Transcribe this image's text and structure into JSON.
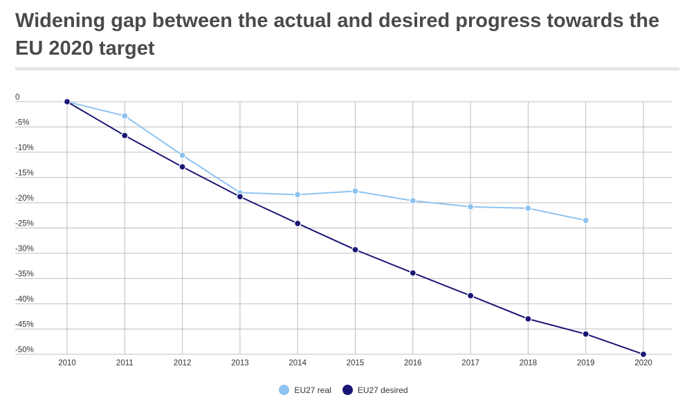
{
  "title": "Widening gap between the actual and desired progress towards the EU 2020 target",
  "colors": {
    "real": "#8ec3f0",
    "desired": "#1a1675",
    "grid": "#bdbdbd",
    "title_rule": "#e6e6e6"
  },
  "chart_data": {
    "type": "line",
    "x": [
      2010,
      2011,
      2012,
      2013,
      2014,
      2015,
      2016,
      2017,
      2018,
      2019,
      2020
    ],
    "y_ticks": [
      0,
      -5,
      -10,
      -15,
      -20,
      -25,
      -30,
      -35,
      -40,
      -45,
      -50
    ],
    "y_tick_labels": [
      "0",
      "-5%",
      "-10%",
      "-15%",
      "-20%",
      "-25%",
      "-30%",
      "-35%",
      "-40%",
      "-45%",
      "-50%"
    ],
    "ylim": [
      -50,
      0
    ],
    "grid": true,
    "legend_position": "bottom-center",
    "series": [
      {
        "name": "EU27 real",
        "color": "#8ec3f0",
        "values": [
          0,
          -2.8,
          -10.6,
          -18,
          -18.4,
          -17.7,
          -19.6,
          -20.8,
          -21.1,
          -23.5,
          null
        ]
      },
      {
        "name": "EU27 desired",
        "color": "#1a1675",
        "values": [
          0,
          -6.7,
          -12.9,
          -18.8,
          -24.1,
          -29.3,
          -33.9,
          -38.4,
          -43,
          -46,
          -50
        ]
      }
    ]
  }
}
